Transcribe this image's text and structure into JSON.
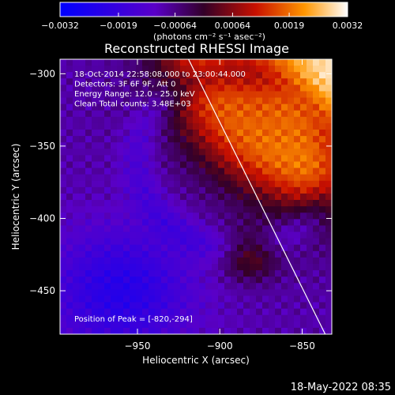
{
  "chart_data": {
    "type": "heatmap",
    "title": "Reconstructed RHESSI Image",
    "xlabel": "Heliocentric X (arcsec)",
    "ylabel": "Heliocentric Y (arcsec)",
    "xlim": [
      -997,
      -832
    ],
    "ylim": [
      -480,
      -290
    ],
    "x_ticks": [
      -950,
      -900,
      -850
    ],
    "y_ticks": [
      -300,
      -350,
      -400,
      -450
    ],
    "colorbar": {
      "ticks": [
        -0.0032,
        -0.0019,
        -0.00064,
        0.00064,
        0.0019,
        0.0032
      ],
      "tick_labels": [
        "-0.0032",
        "-0.0019",
        "-0.00064",
        "0.00064",
        "0.0019",
        "0.0032"
      ],
      "range": [
        -0.0032,
        0.0032
      ],
      "unit_label": "(photons cm⁻² s⁻¹ asec⁻²)"
    },
    "annotations": [
      "18-Oct-2014 22:58:08.000 to 23:00:44.000",
      "Detectors: 3F 6F 9F, Att 0",
      "Energy Range: 12.0 - 25.0 keV",
      "Clean    Total counts: 3.48E+03"
    ],
    "peak_label": "Position of Peak = [-820,-294]",
    "peak": {
      "x": -820,
      "y": -294
    },
    "limb_line": [
      [
        -919,
        -290
      ],
      [
        -836,
        -480
      ]
    ]
  },
  "footer": {
    "timestamp": "18-May-2022 08:35"
  }
}
